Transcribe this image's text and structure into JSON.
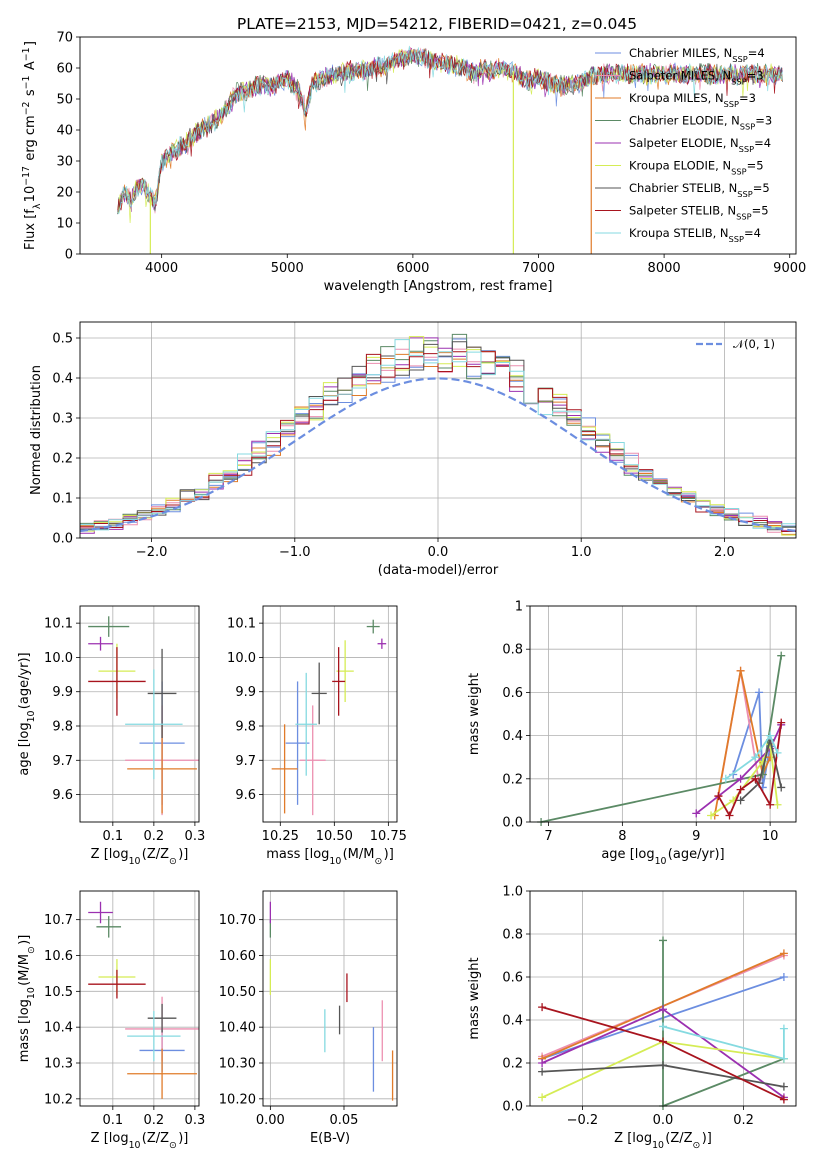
{
  "figure": {
    "title": "PLATE=2153, MJD=54212, FIBERID=0421, z=0.045"
  },
  "series_styles": [
    {
      "name": "Chabrier MILES, N$_{SSP}$=4",
      "name_base": "Chabrier MILES, N",
      "name_sub": "SSP",
      "name_tail": "=4",
      "color": "#6c8ee0"
    },
    {
      "name": "Salpeter MILES, N$_{SSP}$=3",
      "name_base": "Salpeter MILES, N",
      "name_sub": "SSP",
      "name_tail": "=3",
      "color": "#ec8fb0"
    },
    {
      "name": "Kroupa MILES, N$_{SSP}$=3",
      "name_base": "Kroupa MILES, N",
      "name_sub": "SSP",
      "name_tail": "=3",
      "color": "#e07b2a"
    },
    {
      "name": "Chabrier ELODIE, N$_{SSP}$=3",
      "name_base": "Chabrier ELODIE, N",
      "name_sub": "SSP",
      "name_tail": "=3",
      "color": "#5b8a65"
    },
    {
      "name": "Salpeter ELODIE, N$_{SSP}$=4",
      "name_base": "Salpeter ELODIE, N",
      "name_sub": "SSP",
      "name_tail": "=4",
      "color": "#9b30b0"
    },
    {
      "name": "Kroupa ELODIE, N$_{SSP}$=5",
      "name_base": "Kroupa ELODIE, N",
      "name_sub": "SSP",
      "name_tail": "=5",
      "color": "#d5ec55"
    },
    {
      "name": "Chabrier STELIB, N$_{SSP}$=5",
      "name_base": "Chabrier STELIB, N",
      "name_sub": "SSP",
      "name_tail": "=5",
      "color": "#555555"
    },
    {
      "name": "Salpeter STELIB, N$_{SSP}$=5",
      "name_base": "Salpeter STELIB, N",
      "name_sub": "SSP",
      "name_tail": "=5",
      "color": "#a8141e"
    },
    {
      "name": "Kroupa STELIB, N$_{SSP}$=4",
      "name_base": "Kroupa STELIB, N",
      "name_sub": "SSP",
      "name_tail": "=4",
      "color": "#85dae0"
    }
  ],
  "chart_data": [
    {
      "id": "spectrum",
      "type": "line",
      "title": "PLATE=2153, MJD=54212, FIBERID=0421, z=0.045",
      "xlabel": "wavelength [Angstrom, rest frame]",
      "ylabel": "Flux [f$_\\lambda$10$^{-17}$ erg cm$^{-2}$ s$^{-1}$ A$^{-1}$]",
      "xlim": [
        3350,
        9050
      ],
      "ylim": [
        0,
        70
      ],
      "xticks": [
        4000,
        5000,
        6000,
        7000,
        8000,
        9000
      ],
      "yticks": [
        0,
        10,
        20,
        30,
        40,
        50,
        60,
        70
      ],
      "legend_placement": "right",
      "profile_x": [
        3650,
        3700,
        3750,
        3800,
        3850,
        3900,
        3950,
        4000,
        4100,
        4200,
        4300,
        4400,
        4500,
        4600,
        4700,
        4800,
        4900,
        5000,
        5100,
        5150,
        5200,
        5300,
        5400,
        5500,
        5600,
        5700,
        5800,
        5900,
        6000,
        6100,
        6200,
        6300,
        6400,
        6500,
        6560,
        6600,
        6700,
        6800,
        6900,
        7000,
        7100,
        7200,
        7300,
        7400,
        7500,
        7600,
        7800,
        8000,
        8200,
        8400,
        8600,
        8800,
        8950
      ],
      "profile_y": [
        15,
        20,
        18,
        21,
        22,
        19,
        16,
        30,
        33,
        36,
        40,
        42,
        46,
        52,
        53,
        55,
        54,
        57,
        52,
        46,
        55,
        57,
        58,
        59,
        59,
        60,
        61,
        63,
        64,
        63,
        62,
        61,
        60,
        58,
        60,
        59,
        60,
        59,
        56,
        57,
        55,
        54,
        55,
        57,
        58,
        58,
        58,
        58,
        58,
        58,
        58,
        58,
        58
      ],
      "dropouts": [
        {
          "series": 5,
          "x": 3910
        },
        {
          "series": 5,
          "x": 6800
        },
        {
          "series": 2,
          "x": 7420
        }
      ]
    },
    {
      "id": "residuals",
      "type": "area",
      "xlabel": "(data-model)/error",
      "ylabel": "Normed distribution",
      "xlim": [
        -2.5,
        2.5
      ],
      "ylim": [
        0,
        0.54
      ],
      "xticks": [
        -2,
        -1,
        0,
        1,
        2
      ],
      "yticks": [
        0.0,
        0.1,
        0.2,
        0.3,
        0.4,
        0.5
      ],
      "grid": true,
      "legend": [
        {
          "name": "$\\mathcal{N}(0,1)$",
          "label_text": "𝒩(0, 1)",
          "style": "dashed",
          "color": "#6c8ee0"
        }
      ],
      "legend_placement": "top-right",
      "bins": 50,
      "bin_width": 0.1
    },
    {
      "id": "age_vs_Z",
      "type": "scatter",
      "xlabel": "Z [log$_{10}$(Z/Z$_\\odot$)]",
      "ylabel": "age  [log$_{10}$(age/yr)]",
      "xlim": [
        0.02,
        0.31
      ],
      "ylim": [
        9.52,
        10.15
      ],
      "xticks": [
        0.1,
        0.2,
        0.3
      ],
      "yticks": [
        9.6,
        9.7,
        9.8,
        9.9,
        10.0,
        10.1
      ],
      "grid": true,
      "points": [
        {
          "series": 0,
          "x": 0.22,
          "y": 9.75,
          "xerr": 0.055,
          "yerr": 0.18
        },
        {
          "series": 1,
          "x": 0.22,
          "y": 9.7,
          "xerr": 0.09,
          "yerr": 0.16
        },
        {
          "series": 2,
          "x": 0.22,
          "y": 9.675,
          "xerr": 0.085,
          "yerr": 0.13
        },
        {
          "series": 3,
          "x": 0.09,
          "y": 10.09,
          "xerr": 0.05,
          "yerr": 0.03
        },
        {
          "series": 4,
          "x": 0.07,
          "y": 10.04,
          "xerr": 0.03,
          "yerr": 0.02
        },
        {
          "series": 5,
          "x": 0.11,
          "y": 9.96,
          "xerr": 0.045,
          "yerr": 0.08
        },
        {
          "series": 6,
          "x": 0.22,
          "y": 9.895,
          "xerr": 0.035,
          "yerr": 0.13
        },
        {
          "series": 7,
          "x": 0.11,
          "y": 9.93,
          "xerr": 0.07,
          "yerr": 0.1
        },
        {
          "series": 8,
          "x": 0.2,
          "y": 9.805,
          "xerr": 0.07,
          "yerr": 0.16
        }
      ]
    },
    {
      "id": "age_vs_mass",
      "type": "scatter",
      "xlabel": "mass [log$_{10}$(M/M$_\\odot$)]",
      "ylabel": "",
      "xlim": [
        10.17,
        10.79
      ],
      "ylim": [
        9.52,
        10.15
      ],
      "xticks": [
        10.25,
        10.5,
        10.75
      ],
      "yticks": [
        9.6,
        9.7,
        9.8,
        9.9,
        10.0,
        10.1
      ],
      "grid": true,
      "points": [
        {
          "series": 0,
          "x": 10.33,
          "y": 9.75,
          "xerr": 0.055,
          "yerr": 0.18
        },
        {
          "series": 1,
          "x": 10.4,
          "y": 9.7,
          "xerr": 0.06,
          "yerr": 0.16
        },
        {
          "series": 2,
          "x": 10.27,
          "y": 9.675,
          "xerr": 0.06,
          "yerr": 0.13
        },
        {
          "series": 3,
          "x": 10.68,
          "y": 10.09,
          "xerr": 0.03,
          "yerr": 0.02
        },
        {
          "series": 4,
          "x": 10.72,
          "y": 10.04,
          "xerr": 0.02,
          "yerr": 0.015
        },
        {
          "series": 5,
          "x": 10.55,
          "y": 9.96,
          "xerr": 0.04,
          "yerr": 0.09
        },
        {
          "series": 6,
          "x": 10.43,
          "y": 9.895,
          "xerr": 0.035,
          "yerr": 0.09
        },
        {
          "series": 7,
          "x": 10.52,
          "y": 9.93,
          "xerr": 0.03,
          "yerr": 0.1
        },
        {
          "series": 8,
          "x": 10.37,
          "y": 9.805,
          "xerr": 0.05,
          "yerr": 0.15
        }
      ]
    },
    {
      "id": "weight_vs_age",
      "type": "line",
      "xlabel": "age  [log$_{10}$(age/yr)]",
      "ylabel": "mass weight",
      "xlim": [
        6.75,
        10.35
      ],
      "ylim": [
        0,
        1.0
      ],
      "xticks": [
        7,
        8,
        9,
        10
      ],
      "yticks": [
        0.0,
        0.2,
        0.4,
        0.6,
        0.8,
        1.0
      ],
      "grid": true,
      "series": [
        {
          "series": 0,
          "x": [
            9.5,
            9.85,
            9.9,
            10.0
          ],
          "y": [
            0.22,
            0.6,
            0.16,
            0.35
          ]
        },
        {
          "series": 1,
          "x": [
            9.3,
            9.6,
            9.85,
            10.0
          ],
          "y": [
            0.12,
            0.7,
            0.18,
            0.3
          ]
        },
        {
          "series": 2,
          "x": [
            9.25,
            9.6,
            9.9,
            10.0
          ],
          "y": [
            0.03,
            0.7,
            0.22,
            0.3
          ]
        },
        {
          "series": 3,
          "x": [
            6.9,
            9.9,
            10.15
          ],
          "y": [
            0.0,
            0.22,
            0.77
          ]
        },
        {
          "series": 4,
          "x": [
            9.0,
            9.6,
            10.0,
            10.15
          ],
          "y": [
            0.04,
            0.2,
            0.34,
            0.45
          ]
        },
        {
          "series": 5,
          "x": [
            9.2,
            9.5,
            9.9,
            10.0,
            10.1
          ],
          "y": [
            0.03,
            0.1,
            0.28,
            0.36,
            0.08
          ]
        },
        {
          "series": 6,
          "x": [
            9.6,
            9.85,
            10.0,
            10.15
          ],
          "y": [
            0.1,
            0.18,
            0.38,
            0.16
          ]
        },
        {
          "series": 7,
          "x": [
            9.3,
            9.45,
            9.6,
            9.8,
            10.0,
            10.15
          ],
          "y": [
            0.12,
            0.03,
            0.15,
            0.2,
            0.08,
            0.46
          ]
        },
        {
          "series": 8,
          "x": [
            9.4,
            9.8,
            10.0,
            10.1
          ],
          "y": [
            0.2,
            0.3,
            0.4,
            0.32
          ]
        }
      ]
    },
    {
      "id": "mass_vs_Z",
      "type": "scatter",
      "xlabel": "Z [log$_{10}$(Z/Z$_\\odot$)]",
      "ylabel": "mass [log$_{10}$(M/M$_\\odot$)]",
      "xlim": [
        0.02,
        0.31
      ],
      "ylim": [
        10.18,
        10.78
      ],
      "xticks": [
        0.1,
        0.2,
        0.3
      ],
      "yticks": [
        10.2,
        10.3,
        10.4,
        10.5,
        10.6,
        10.7
      ],
      "grid": true,
      "points": [
        {
          "series": 0,
          "x": 0.22,
          "y": 10.335,
          "xerr": 0.055,
          "yerr": 0.06
        },
        {
          "series": 1,
          "x": 0.22,
          "y": 10.395,
          "xerr": 0.09,
          "yerr": 0.09
        },
        {
          "series": 2,
          "x": 0.22,
          "y": 10.27,
          "xerr": 0.085,
          "yerr": 0.07
        },
        {
          "series": 3,
          "x": 0.09,
          "y": 10.68,
          "xerr": 0.03,
          "yerr": 0.03
        },
        {
          "series": 4,
          "x": 0.07,
          "y": 10.72,
          "xerr": 0.03,
          "yerr": 0.03
        },
        {
          "series": 5,
          "x": 0.11,
          "y": 10.54,
          "xerr": 0.045,
          "yerr": 0.05
        },
        {
          "series": 6,
          "x": 0.22,
          "y": 10.425,
          "xerr": 0.035,
          "yerr": 0.04
        },
        {
          "series": 7,
          "x": 0.11,
          "y": 10.52,
          "xerr": 0.07,
          "yerr": 0.04
        },
        {
          "series": 8,
          "x": 0.2,
          "y": 10.375,
          "xerr": 0.065,
          "yerr": 0.07
        }
      ]
    },
    {
      "id": "mass_vs_EBV",
      "type": "scatter",
      "xlabel": "E(B-V)",
      "ylabel": "",
      "xlim": [
        -0.005,
        0.086
      ],
      "ylim": [
        10.18,
        10.78
      ],
      "xticks": [
        0.0,
        0.05
      ],
      "yticks": [
        10.2,
        10.3,
        10.4,
        10.5,
        10.6,
        10.7
      ],
      "grid": true,
      "points": [
        {
          "series": 0,
          "x": 0.07,
          "y": 10.31,
          "xerr": 0.0,
          "yerr": 0.09
        },
        {
          "series": 1,
          "x": 0.076,
          "y": 10.39,
          "xerr": 0.0,
          "yerr": 0.085
        },
        {
          "series": 2,
          "x": 0.083,
          "y": 10.265,
          "xerr": 0.0,
          "yerr": 0.07
        },
        {
          "series": 3,
          "x": 0.0,
          "y": 10.675,
          "xerr": 0.0,
          "yerr": 0.025
        },
        {
          "series": 4,
          "x": 0.0,
          "y": 10.72,
          "xerr": 0.0,
          "yerr": 0.03
        },
        {
          "series": 5,
          "x": 0.0,
          "y": 10.54,
          "xerr": 0.0,
          "yerr": 0.05
        },
        {
          "series": 6,
          "x": 0.047,
          "y": 10.42,
          "xerr": 0.0,
          "yerr": 0.04
        },
        {
          "series": 7,
          "x": 0.052,
          "y": 10.51,
          "xerr": 0.0,
          "yerr": 0.04
        },
        {
          "series": 8,
          "x": 0.037,
          "y": 10.39,
          "xerr": 0.0,
          "yerr": 0.06
        }
      ]
    },
    {
      "id": "weight_vs_Z",
      "type": "line",
      "xlabel": "Z [log$_{10}$(Z/Z$_\\odot$)]",
      "ylabel": "mass weight",
      "xlim": [
        -0.33,
        0.33
      ],
      "ylim": [
        0,
        1.0
      ],
      "xticks": [
        -0.2,
        0.0,
        0.2
      ],
      "yticks": [
        0.0,
        0.2,
        0.4,
        0.6,
        0.8,
        1.0
      ],
      "grid": true,
      "series": [
        {
          "series": 0,
          "x": [
            -0.3,
            0.3
          ],
          "y": [
            0.22,
            0.6
          ]
        },
        {
          "series": 1,
          "x": [
            -0.3,
            0.3
          ],
          "y": [
            0.23,
            0.7
          ]
        },
        {
          "series": 2,
          "x": [
            -0.3,
            0.3
          ],
          "y": [
            0.22,
            0.71
          ]
        },
        {
          "series": 3,
          "x": [
            0.0,
            0.0,
            0.3
          ],
          "y": [
            0.77,
            0.0,
            0.22
          ]
        },
        {
          "series": 4,
          "x": [
            -0.3,
            0.0,
            0.3
          ],
          "y": [
            0.2,
            0.45,
            0.04
          ]
        },
        {
          "series": 5,
          "x": [
            -0.3,
            0.0,
            0.3
          ],
          "y": [
            0.04,
            0.3,
            0.22
          ]
        },
        {
          "series": 6,
          "x": [
            -0.3,
            0.0,
            0.3
          ],
          "y": [
            0.16,
            0.19,
            0.09
          ]
        },
        {
          "series": 7,
          "x": [
            -0.3,
            0.0,
            0.3
          ],
          "y": [
            0.46,
            0.3,
            0.03
          ]
        },
        {
          "series": 8,
          "x": [
            0.0,
            0.3,
            0.3
          ],
          "y": [
            0.37,
            0.22,
            0.36
          ]
        }
      ]
    }
  ]
}
